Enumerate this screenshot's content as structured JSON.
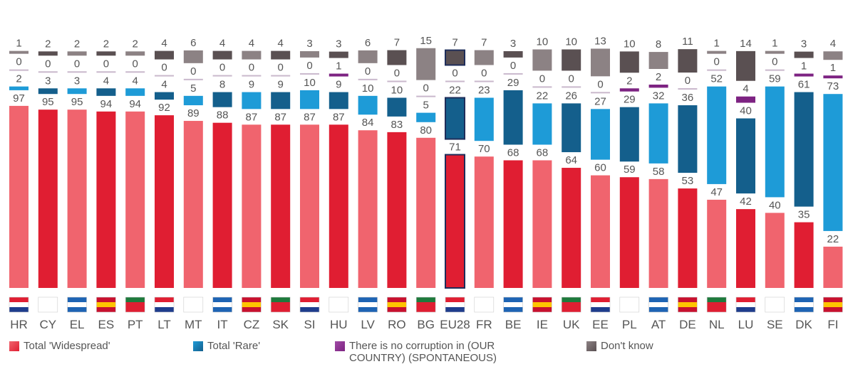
{
  "chart_data": {
    "type": "bar",
    "stacked": true,
    "categories": [
      "HR",
      "CY",
      "EL",
      "ES",
      "PT",
      "LT",
      "MT",
      "IT",
      "CZ",
      "SK",
      "SI",
      "HU",
      "LV",
      "RO",
      "BG",
      "EU28",
      "FR",
      "BE",
      "IE",
      "UK",
      "EE",
      "PL",
      "AT",
      "DE",
      "NL",
      "LU",
      "SE",
      "DK",
      "FI"
    ],
    "series": [
      {
        "name": "Total 'Widespread'",
        "values": [
          97,
          95,
          95,
          94,
          94,
          92,
          89,
          88,
          87,
          87,
          87,
          87,
          84,
          83,
          80,
          71,
          70,
          68,
          68,
          64,
          60,
          59,
          58,
          53,
          47,
          42,
          40,
          35,
          22
        ]
      },
      {
        "name": "Total 'Rare'",
        "values": [
          2,
          3,
          3,
          4,
          4,
          4,
          5,
          8,
          9,
          9,
          10,
          9,
          10,
          10,
          5,
          22,
          23,
          29,
          22,
          26,
          27,
          29,
          32,
          36,
          52,
          40,
          59,
          61,
          73
        ]
      },
      {
        "name": "There is no corruption in (OUR COUNTRY) (SPONTANEOUS)",
        "values": [
          0,
          0,
          0,
          0,
          0,
          0,
          0,
          0,
          0,
          0,
          0,
          1,
          0,
          0,
          0,
          0,
          0,
          0,
          0,
          0,
          0,
          2,
          2,
          0,
          0,
          4,
          0,
          1,
          1
        ]
      },
      {
        "name": "Don't know",
        "values": [
          1,
          2,
          2,
          2,
          2,
          4,
          6,
          4,
          4,
          4,
          3,
          3,
          6,
          7,
          15,
          7,
          7,
          3,
          10,
          10,
          13,
          10,
          8,
          11,
          1,
          14,
          1,
          3,
          4
        ]
      }
    ],
    "colors": {
      "widespread_light": "#f0646e",
      "widespread_dark": "#e01e32",
      "rare_light": "#1e9bd7",
      "rare_dark": "#145f8c",
      "none_color": "#7d2382",
      "dontknow_light": "#8c8284",
      "dontknow_dark": "#5a5052",
      "highlight_border": "#1e2d5a"
    },
    "highlight": "EU28",
    "legend_placement": "bottom",
    "grid": false
  },
  "legend": {
    "items": [
      {
        "label": "Total 'Widespread'",
        "color": "#e01e32"
      },
      {
        "label": "Total 'Rare'",
        "color": "#1e9bd7"
      },
      {
        "label": "There is no corruption in (OUR COUNTRY) (SPONTANEOUS)",
        "color": "#7d2382"
      },
      {
        "label": "Don't know",
        "color": "#6e6466"
      }
    ]
  }
}
